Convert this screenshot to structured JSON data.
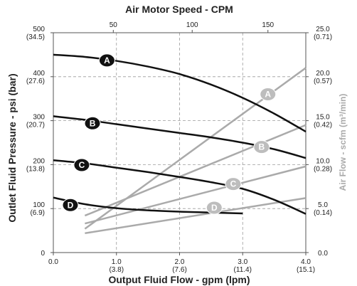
{
  "chart_data": {
    "type": "line",
    "title": "Air Motor Speed - CPM",
    "xlabel": "Output Fluid Flow - gpm (lpm)",
    "ylabel_left": "Outlet Fluid Pressure - psi (bar)",
    "ylabel_right": "Air Flow - scfm (m³/min)",
    "xlim": [
      0,
      4
    ],
    "ylim": [
      0,
      500
    ],
    "y2lim": [
      0,
      25
    ],
    "top_axis": {
      "ticks": [
        "50",
        "100",
        "150"
      ],
      "values_gpm": [
        0.95,
        2.2,
        3.4
      ]
    },
    "x_ticks": [
      {
        "value": 0,
        "label": "0.0",
        "sub": ""
      },
      {
        "value": 1,
        "label": "1.0",
        "sub": "(3.8)"
      },
      {
        "value": 2,
        "label": "2.0",
        "sub": "(7.6)"
      },
      {
        "value": 3,
        "label": "3.0",
        "sub": "(11.4)"
      },
      {
        "value": 4,
        "label": "4.0",
        "sub": "(15.1)"
      }
    ],
    "y_ticks_left": [
      {
        "value": 0,
        "label": "0",
        "sub": ""
      },
      {
        "value": 100,
        "label": "100",
        "sub": "(6.9)"
      },
      {
        "value": 200,
        "label": "200",
        "sub": "(13.8)"
      },
      {
        "value": 300,
        "label": "300",
        "sub": "(20.7)"
      },
      {
        "value": 400,
        "label": "400",
        "sub": "(27.6)"
      },
      {
        "value": 500,
        "label": "500",
        "sub": "(34.5)"
      }
    ],
    "y_ticks_right": [
      {
        "value": 0,
        "label": "0.0",
        "sub": ""
      },
      {
        "value": 5,
        "label": "5.0",
        "sub": "(0.14)"
      },
      {
        "value": 10,
        "label": "10.0",
        "sub": "(0.28)"
      },
      {
        "value": 15,
        "label": "15.0",
        "sub": "(0.42)"
      },
      {
        "value": 20,
        "label": "20.0",
        "sub": "(0.57)"
      },
      {
        "value": 25,
        "label": "25.0",
        "sub": "(0.71)"
      }
    ],
    "grid": true,
    "pressure_series": [
      {
        "name": "A",
        "x": [
          0,
          0.5,
          1.0,
          1.5,
          2.0,
          2.5,
          3.0,
          3.5,
          4.0
        ],
        "y": [
          450,
          445,
          436,
          423,
          406,
          382,
          352,
          316,
          275
        ],
        "label_at": [
          0.85,
          437
        ]
      },
      {
        "name": "B",
        "x": [
          0,
          0.5,
          1.0,
          1.5,
          2.0,
          2.5,
          3.0,
          3.5,
          4.0
        ],
        "y": [
          310,
          302,
          292,
          282,
          272,
          262,
          250,
          235,
          215
        ],
        "label_at": [
          0.62,
          294
        ]
      },
      {
        "name": "C",
        "x": [
          0,
          0.5,
          1.0,
          1.5,
          2.0,
          2.5,
          3.0,
          3.5,
          4.0
        ],
        "y": [
          210,
          203,
          193,
          183,
          172,
          160,
          145,
          120,
          88
        ],
        "label_at": [
          0.45,
          199
        ]
      },
      {
        "name": "D",
        "x": [
          0,
          0.5,
          1.0,
          1.5,
          2.0,
          2.5,
          3.0
        ],
        "y": [
          125,
          110,
          101,
          96,
          93,
          91,
          89
        ],
        "label_at": [
          0.27,
          108
        ]
      }
    ],
    "airflow_series": [
      {
        "name": "A",
        "x": [
          0.5,
          4.0
        ],
        "y": [
          2.7,
          21.0
        ],
        "label_at": [
          3.4,
          18.0
        ]
      },
      {
        "name": "B",
        "x": [
          0.5,
          4.0
        ],
        "y": [
          4.2,
          14.5
        ],
        "label_at": [
          3.3,
          12.0
        ]
      },
      {
        "name": "C",
        "x": [
          0.5,
          4.0
        ],
        "y": [
          3.3,
          9.8
        ],
        "label_at": [
          2.85,
          7.8
        ]
      },
      {
        "name": "D",
        "x": [
          0.5,
          4.0
        ],
        "y": [
          2.2,
          6.2
        ],
        "label_at": [
          2.55,
          5.1
        ]
      }
    ],
    "colors": {
      "pressure": "#111111",
      "airflow": "#aaaaaa",
      "grid": "#9a9a9a",
      "marker_fill_pressure": "#111111",
      "marker_fill_airflow": "#bdbdbd"
    }
  }
}
